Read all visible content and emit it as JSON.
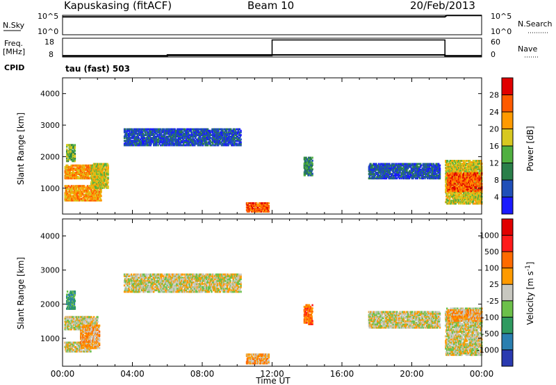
{
  "header": {
    "station": "Kapuskasing (fitACF)",
    "beam": "Beam 10",
    "date": "20/Feb/2013"
  },
  "strip_panels": {
    "noise": {
      "left_label": "N.Sky",
      "right_label": "N.Search",
      "left_ticks": [
        "10^5",
        "10^0"
      ],
      "right_ticks": [
        "10^5",
        "10^0"
      ]
    },
    "freq": {
      "left_label_line1": "Freq.",
      "left_label_line2": "[MHz]",
      "right_label": "Nave",
      "left_ticks": [
        "18",
        "8"
      ],
      "right_ticks": [
        "60",
        "0"
      ]
    },
    "cpid": {
      "label": "CPID",
      "mode": "tau (fast) 503"
    }
  },
  "chart_data": [
    {
      "type": "line",
      "title": "Noise",
      "series": [
        {
          "name": "N.Sky",
          "x_hours": [
            0,
            0.2,
            21.9,
            22.0,
            24
          ],
          "values_log10": [
            4.6,
            4.6,
            4.6,
            4.95,
            4.95
          ]
        },
        {
          "name": "N.Search",
          "x_hours": [
            0,
            24
          ],
          "values_log10": [
            4.6,
            4.6
          ]
        }
      ],
      "ylim_log10": [
        0,
        5
      ]
    },
    {
      "type": "line",
      "title": "Freq. / Nave",
      "series": [
        {
          "name": "Freq. [MHz]",
          "x_hours": [
            0,
            6,
            6,
            21.9,
            21.9,
            24
          ],
          "values": [
            8.6,
            8.6,
            9.1,
            9.1,
            8.6,
            8.6
          ]
        },
        {
          "name": "Nave",
          "x_hours": [
            0,
            12,
            12,
            21.9,
            21.9,
            24
          ],
          "values": [
            0,
            0,
            54,
            54,
            0,
            0
          ]
        }
      ],
      "ylim_freq": [
        8,
        18
      ],
      "ylim_nave": [
        0,
        60
      ]
    },
    {
      "type": "heatmap",
      "panel": "power",
      "ylabel": "Slant Range [km]",
      "yticks": [
        "1000",
        "2000",
        "3000",
        "4000"
      ],
      "ylim": [
        180,
        4500
      ],
      "xlim_hours": [
        0,
        24
      ],
      "colorbar": {
        "label": "Power [dB]",
        "ticks": [
          "4",
          "8",
          "12",
          "16",
          "20",
          "24",
          "28"
        ],
        "colors": [
          "#1a1aff",
          "#1f4fb8",
          "#2a7f4a",
          "#50b040",
          "#d8c820",
          "#ff9a00",
          "#ff5a00",
          "#e00000"
        ]
      },
      "echo_regions": [
        {
          "t0": 0.1,
          "t1": 2.3,
          "r0": 1300,
          "r1": 1750,
          "level": 5
        },
        {
          "t0": 0.1,
          "t1": 2.2,
          "r0": 600,
          "r1": 1100,
          "level": 5
        },
        {
          "t0": 0.2,
          "t1": 0.7,
          "r0": 1850,
          "r1": 2400,
          "level": 3
        },
        {
          "t0": 1.6,
          "t1": 2.6,
          "r0": 1000,
          "r1": 1800,
          "level": 4
        },
        {
          "t0": 3.5,
          "t1": 10.2,
          "r0": 2350,
          "r1": 2900,
          "level": 1
        },
        {
          "t0": 10.5,
          "t1": 11.8,
          "r0": 250,
          "r1": 550,
          "level": 6
        },
        {
          "t0": 13.8,
          "t1": 14.3,
          "r0": 1400,
          "r1": 2000,
          "level": 2
        },
        {
          "t0": 17.5,
          "t1": 21.6,
          "r0": 1300,
          "r1": 1800,
          "level": 1
        },
        {
          "t0": 21.9,
          "t1": 24,
          "r0": 500,
          "r1": 1900,
          "level": 4
        },
        {
          "t0": 22.0,
          "t1": 24,
          "r0": 900,
          "r1": 1500,
          "level": 6
        }
      ]
    },
    {
      "type": "heatmap",
      "panel": "velocity",
      "ylabel": "Slant Range [km]",
      "yticks": [
        "1000",
        "2000",
        "3000",
        "4000"
      ],
      "ylim": [
        180,
        4500
      ],
      "xlim_hours": [
        0,
        24
      ],
      "xlabel": "Time UT",
      "xticks": [
        "00:00",
        "04:00",
        "08:00",
        "12:00",
        "16:00",
        "20:00",
        "00:00"
      ],
      "colorbar": {
        "label_main": "Velocity",
        "label_unit": "[m s",
        "label_exp": "-1",
        "label_close": "]",
        "ticks": [
          "1000",
          "500",
          "100",
          "25",
          "-25",
          "-100",
          "-500",
          "-1000"
        ],
        "colors": [
          "#2a3ab0",
          "#2a7fb0",
          "#2f9a60",
          "#6cc04a",
          "#c8c8c0",
          "#ff9a00",
          "#ff6a00",
          "#ff1a1a",
          "#e00000"
        ]
      },
      "echo_regions": [
        {
          "t0": 0.1,
          "t1": 1.6,
          "r0": 600,
          "r1": 900,
          "level": 4
        },
        {
          "t0": 0.1,
          "t1": 2.0,
          "r0": 1250,
          "r1": 1650,
          "level": 4
        },
        {
          "t0": 1.0,
          "t1": 2.1,
          "r0": 700,
          "r1": 1400,
          "level": 5
        },
        {
          "t0": 0.2,
          "t1": 0.7,
          "r0": 1850,
          "r1": 2400,
          "level": 2
        },
        {
          "t0": 3.5,
          "t1": 10.2,
          "r0": 2350,
          "r1": 2900,
          "level": 4
        },
        {
          "t0": 10.5,
          "t1": 11.8,
          "r0": 250,
          "r1": 550,
          "level": 5
        },
        {
          "t0": 13.8,
          "t1": 14.3,
          "r0": 1400,
          "r1": 2000,
          "level": 6
        },
        {
          "t0": 17.5,
          "t1": 21.6,
          "r0": 1300,
          "r1": 1800,
          "level": 4
        },
        {
          "t0": 21.9,
          "t1": 24,
          "r0": 500,
          "r1": 1900,
          "level": 4
        },
        {
          "t0": 22.0,
          "t1": 24,
          "r0": 1500,
          "r1": 1850,
          "level": 5
        }
      ]
    }
  ]
}
